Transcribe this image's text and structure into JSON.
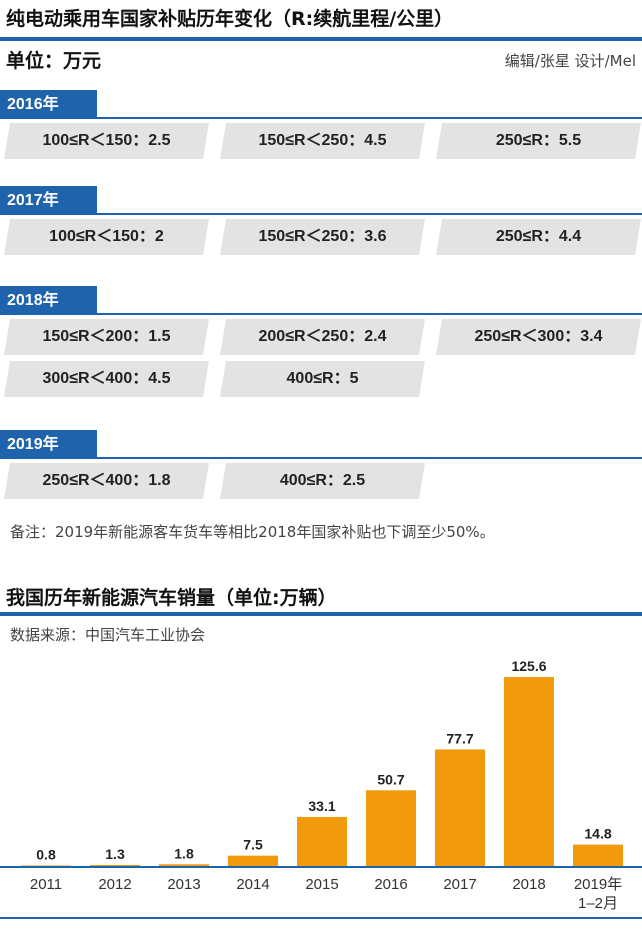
{
  "header": {
    "title": "纯电动乘用车国家补贴历年变化（R:续航里程/公里）",
    "unit": "单位：万元",
    "credit": "编辑/张星  设计/Mel"
  },
  "subsidy_groups": [
    {
      "year": "2016年",
      "items": [
        {
          "range": "100≤R＜150",
          "value": "2.5"
        },
        {
          "range": "150≤R＜250",
          "value": "4.5"
        },
        {
          "range": "250≤R",
          "value": "5.5"
        }
      ]
    },
    {
      "year": "2017年",
      "items": [
        {
          "range": "100≤R＜150",
          "value": "2"
        },
        {
          "range": "150≤R＜250",
          "value": "3.6"
        },
        {
          "range": "250≤R",
          "value": "4.4"
        }
      ]
    },
    {
      "year": "2018年",
      "items": [
        {
          "range": "150≤R＜200",
          "value": "1.5"
        },
        {
          "range": "200≤R＜250",
          "value": "2.4"
        },
        {
          "range": "250≤R＜300",
          "value": "3.4"
        },
        {
          "range": "300≤R＜400",
          "value": "4.5"
        },
        {
          "range": "400≤R",
          "value": "5"
        }
      ]
    },
    {
      "year": "2019年",
      "items": [
        {
          "range": "250≤R＜400",
          "value": "1.8"
        },
        {
          "range": "400≤R",
          "value": "2.5"
        }
      ]
    }
  ],
  "note": "备注：2019年新能源客车货车等相比2018年国家补贴也下调至少50%。",
  "chart_section": {
    "title": "我国历年新能源汽车销量（单位:万辆）",
    "source": "数据来源：中国汽车工业协会"
  },
  "chart_data": {
    "type": "bar",
    "title": "我国历年新能源汽车销量（单位:万辆）",
    "unit": "万辆",
    "categories": [
      "2011",
      "2012",
      "2013",
      "2014",
      "2015",
      "2016",
      "2017",
      "2018",
      "2019年\n1–2月"
    ],
    "values": [
      0.8,
      1.3,
      1.8,
      7.5,
      33.1,
      50.7,
      77.7,
      125.6,
      14.8
    ],
    "bar_color": "#f19a0c",
    "grid": false,
    "legend": "none"
  },
  "colors": {
    "accent_blue": "#1f63ad",
    "tile_gray": "#e3e3e3",
    "bar_orange": "#f19a0c"
  }
}
